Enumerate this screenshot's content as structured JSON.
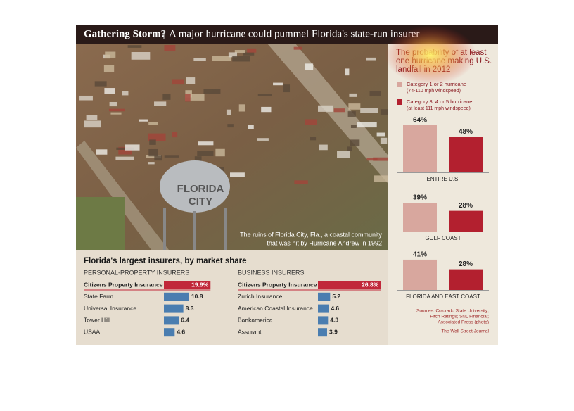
{
  "title": "Gathering Storm?",
  "subtitle": "A major hurricane could pummel Florida's state-run insurer",
  "photo_text": [
    "FLORIDA",
    "CITY"
  ],
  "photo_caption": [
    "The ruins of Florida City, Fla., a coastal community",
    "that was hit by Hurricane Andrew in 1992"
  ],
  "insurers_title": "Florida's largest insurers, by market share",
  "sources": [
    "Sources: Colorado State University;",
    "Fitch Ratings; SNL Financial;",
    "Associated Press (photo)",
    "The Wall Street Journal"
  ],
  "chart_data": [
    {
      "type": "bar",
      "title": [
        "The probability of at least",
        "one hurricane making U.S.",
        "landfall in 2012"
      ],
      "categories": [
        "ENTIRE U.S.",
        "GULF COAST",
        "FLORIDA AND EAST COAST"
      ],
      "series": [
        {
          "name": "Category 1 or 2 hurricane",
          "note": "(74-110 mph windspeed)",
          "color": "#d8a79e",
          "values": [
            64,
            39,
            41
          ],
          "value_labels": [
            "64%",
            "39%",
            "41%"
          ]
        },
        {
          "name": "Category 3, 4 or 5 hurricane",
          "note": "(at least 111 mph windspeed)",
          "color": "#b3202f",
          "values": [
            48,
            28,
            28
          ],
          "value_labels": [
            "48%",
            "28%",
            "28%"
          ]
        }
      ]
    },
    {
      "type": "hbar",
      "title": "PERSONAL-PROPERTY INSURERS",
      "categories": [
        "Citizens Property Insurance",
        "State Farm",
        "Universal Insurance",
        "Tower Hill",
        "USAA"
      ],
      "values": [
        19.9,
        10.8,
        8.3,
        6.4,
        4.6
      ],
      "value_labels": [
        "19.9%",
        "10.8",
        "8.3",
        "6.4",
        "4.6"
      ],
      "colors": [
        "#c1283a",
        "#4a7db0",
        "#4a7db0",
        "#4a7db0",
        "#4a7db0"
      ]
    },
    {
      "type": "hbar",
      "title": "BUSINESS INSURERS",
      "categories": [
        "Citizens Property Insurance",
        "Zurich Insurance",
        "American Coastal Insurance",
        "Bankamerica",
        "Assurant"
      ],
      "values": [
        26.8,
        5.2,
        4.6,
        4.3,
        3.9
      ],
      "value_labels": [
        "26.8%",
        "5.2",
        "4.6",
        "4.3",
        "3.9"
      ],
      "colors": [
        "#c1283a",
        "#4a7db0",
        "#4a7db0",
        "#4a7db0",
        "#4a7db0"
      ]
    }
  ]
}
